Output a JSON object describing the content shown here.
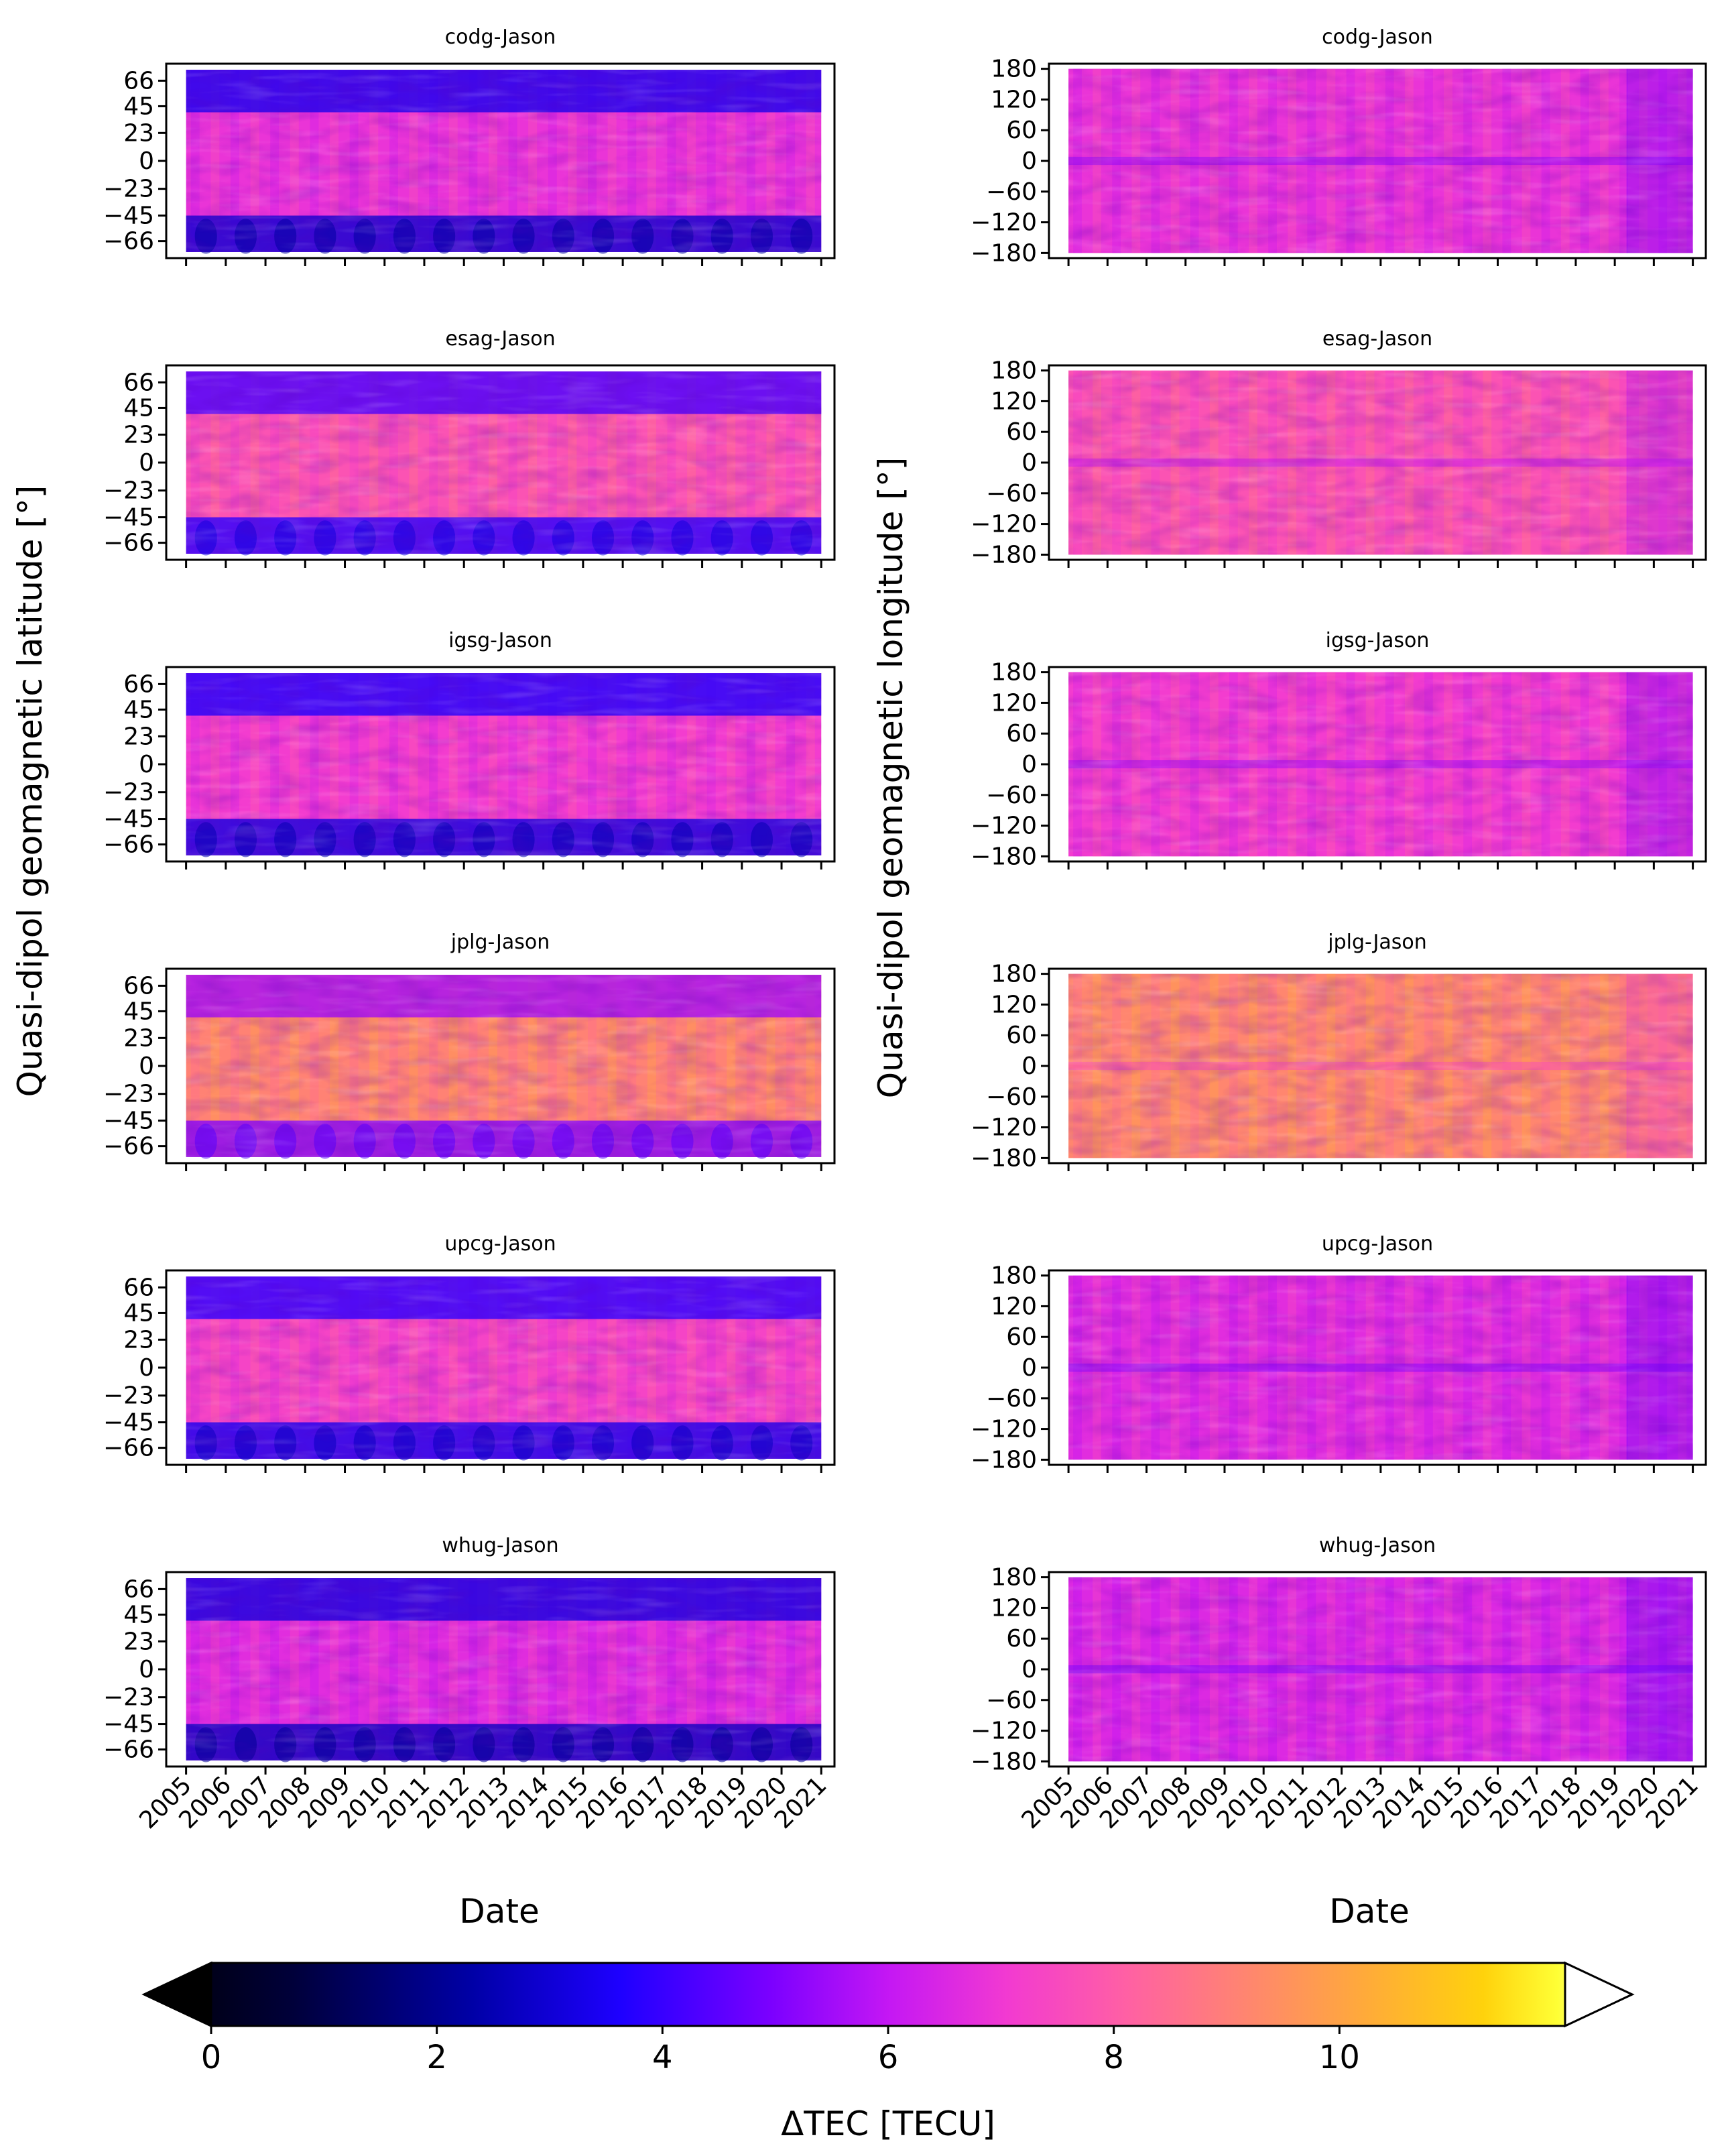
{
  "figure": {
    "ylabel_left": "Quasi-dipol geomagnetic latitude [°]",
    "ylabel_right": "Quasi-dipol geomagnetic longitude [°]",
    "xlabel": "Date",
    "colorbar": {
      "label": "ΔTEC [TECU]",
      "ticks": [
        "0",
        "2",
        "4",
        "6",
        "8",
        "10"
      ],
      "range": [
        0,
        12
      ],
      "extend": "both",
      "colormap": "gnuplot2"
    }
  },
  "chart_data": [
    {
      "type": "heatmap",
      "title": "codg-Jason",
      "xlabel": "",
      "ylabel": "",
      "y_variable": "latitude",
      "yticks": [
        "66",
        "45",
        "23",
        "0",
        "−23",
        "−45",
        "−66"
      ],
      "ytick_values": [
        66,
        45,
        23,
        0,
        -23,
        -45,
        -66
      ],
      "ylim": [
        -80,
        80
      ],
      "xticks": [],
      "xlim": [
        "2004-07",
        "2021-05"
      ],
      "data_range": [
        "2005-01",
        "2021-01"
      ],
      "mean_delta_tec": 6.8
    },
    {
      "type": "heatmap",
      "title": "codg-Jason",
      "xlabel": "",
      "ylabel": "",
      "y_variable": "longitude",
      "yticks": [
        "180",
        "120",
        "60",
        "0",
        "−60",
        "−120",
        "−180"
      ],
      "ytick_values": [
        180,
        120,
        60,
        0,
        -60,
        -120,
        -180
      ],
      "ylim": [
        -190,
        190
      ],
      "xticks": [],
      "xlim": [
        "2004-07",
        "2021-05"
      ],
      "data_range": [
        "2005-01",
        "2021-01"
      ],
      "mean_delta_tec": 6.8
    },
    {
      "type": "heatmap",
      "title": "esag-Jason",
      "xlabel": "",
      "ylabel": "",
      "y_variable": "latitude",
      "yticks": [
        "66",
        "45",
        "23",
        "0",
        "−23",
        "−45",
        "−66"
      ],
      "ytick_values": [
        66,
        45,
        23,
        0,
        -23,
        -45,
        -66
      ],
      "ylim": [
        -80,
        80
      ],
      "xticks": [],
      "xlim": [
        "2004-07",
        "2021-05"
      ],
      "data_range": [
        "2005-01",
        "2021-01"
      ],
      "mean_delta_tec": 7.6
    },
    {
      "type": "heatmap",
      "title": "esag-Jason",
      "xlabel": "",
      "ylabel": "",
      "y_variable": "longitude",
      "yticks": [
        "180",
        "120",
        "60",
        "0",
        "−60",
        "−120",
        "−180"
      ],
      "ytick_values": [
        180,
        120,
        60,
        0,
        -60,
        -120,
        -180
      ],
      "ylim": [
        -190,
        190
      ],
      "xticks": [],
      "xlim": [
        "2004-07",
        "2021-05"
      ],
      "data_range": [
        "2005-01",
        "2021-01"
      ],
      "mean_delta_tec": 7.6
    },
    {
      "type": "heatmap",
      "title": "igsg-Jason",
      "xlabel": "",
      "ylabel": "",
      "y_variable": "latitude",
      "yticks": [
        "66",
        "45",
        "23",
        "0",
        "−23",
        "−45",
        "−66"
      ],
      "ytick_values": [
        66,
        45,
        23,
        0,
        -23,
        -45,
        -66
      ],
      "ylim": [
        -80,
        80
      ],
      "xticks": [],
      "xlim": [
        "2004-07",
        "2021-05"
      ],
      "data_range": [
        "2005-01",
        "2021-01"
      ],
      "mean_delta_tec": 7.0
    },
    {
      "type": "heatmap",
      "title": "igsg-Jason",
      "xlabel": "",
      "ylabel": "",
      "y_variable": "longitude",
      "yticks": [
        "180",
        "120",
        "60",
        "0",
        "−60",
        "−120",
        "−180"
      ],
      "ytick_values": [
        180,
        120,
        60,
        0,
        -60,
        -120,
        -180
      ],
      "ylim": [
        -190,
        190
      ],
      "xticks": [],
      "xlim": [
        "2004-07",
        "2021-05"
      ],
      "data_range": [
        "2005-01",
        "2021-01"
      ],
      "mean_delta_tec": 7.0
    },
    {
      "type": "heatmap",
      "title": "jplg-Jason",
      "xlabel": "",
      "ylabel": "",
      "y_variable": "latitude",
      "yticks": [
        "66",
        "45",
        "23",
        "0",
        "−23",
        "−45",
        "−66"
      ],
      "ytick_values": [
        66,
        45,
        23,
        0,
        -23,
        -45,
        -66
      ],
      "ylim": [
        -80,
        80
      ],
      "xticks": [],
      "xlim": [
        "2004-07",
        "2021-05"
      ],
      "data_range": [
        "2005-01",
        "2021-01"
      ],
      "mean_delta_tec": 8.8
    },
    {
      "type": "heatmap",
      "title": "jplg-Jason",
      "xlabel": "",
      "ylabel": "",
      "y_variable": "longitude",
      "yticks": [
        "180",
        "120",
        "60",
        "0",
        "−60",
        "−120",
        "−180"
      ],
      "ytick_values": [
        180,
        120,
        60,
        0,
        -60,
        -120,
        -180
      ],
      "ylim": [
        -190,
        190
      ],
      "xticks": [],
      "xlim": [
        "2004-07",
        "2021-05"
      ],
      "data_range": [
        "2005-01",
        "2021-01"
      ],
      "mean_delta_tec": 8.9
    },
    {
      "type": "heatmap",
      "title": "upcg-Jason",
      "xlabel": "",
      "ylabel": "",
      "y_variable": "latitude",
      "yticks": [
        "66",
        "45",
        "23",
        "0",
        "−23",
        "−45",
        "−66"
      ],
      "ytick_values": [
        66,
        45,
        23,
        0,
        -23,
        -45,
        -66
      ],
      "ylim": [
        -80,
        80
      ],
      "xticks": [],
      "xlim": [
        "2004-07",
        "2021-05"
      ],
      "data_range": [
        "2005-01",
        "2021-01"
      ],
      "mean_delta_tec": 7.2
    },
    {
      "type": "heatmap",
      "title": "upcg-Jason",
      "xlabel": "",
      "ylabel": "",
      "y_variable": "longitude",
      "yticks": [
        "180",
        "120",
        "60",
        "0",
        "−60",
        "−120",
        "−180"
      ],
      "ytick_values": [
        180,
        120,
        60,
        0,
        -60,
        -120,
        -180
      ],
      "ylim": [
        -190,
        190
      ],
      "xticks": [],
      "xlim": [
        "2004-07",
        "2021-05"
      ],
      "data_range": [
        "2005-01",
        "2021-01"
      ],
      "mean_delta_tec": 6.6
    },
    {
      "type": "heatmap",
      "title": "whug-Jason",
      "xlabel": "Date",
      "ylabel": "",
      "y_variable": "latitude",
      "yticks": [
        "66",
        "45",
        "23",
        "0",
        "−23",
        "−45",
        "−66"
      ],
      "ytick_values": [
        66,
        45,
        23,
        0,
        -23,
        -45,
        -66
      ],
      "ylim": [
        -80,
        80
      ],
      "xticks": [
        "2005",
        "2006",
        "2007",
        "2008",
        "2009",
        "2010",
        "2011",
        "2012",
        "2013",
        "2014",
        "2015",
        "2016",
        "2017",
        "2018",
        "2019",
        "2020",
        "2021"
      ],
      "xlim": [
        "2004-07",
        "2021-05"
      ],
      "data_range": [
        "2005-01",
        "2021-01"
      ],
      "mean_delta_tec": 6.6
    },
    {
      "type": "heatmap",
      "title": "whug-Jason",
      "xlabel": "Date",
      "ylabel": "",
      "y_variable": "longitude",
      "yticks": [
        "180",
        "120",
        "60",
        "0",
        "−60",
        "−120",
        "−180"
      ],
      "ytick_values": [
        180,
        120,
        60,
        0,
        -60,
        -120,
        -180
      ],
      "ylim": [
        -190,
        190
      ],
      "xticks": [
        "2005",
        "2006",
        "2007",
        "2008",
        "2009",
        "2010",
        "2011",
        "2012",
        "2013",
        "2014",
        "2015",
        "2016",
        "2017",
        "2018",
        "2019",
        "2020",
        "2021"
      ],
      "xlim": [
        "2004-07",
        "2021-05"
      ],
      "data_range": [
        "2005-01",
        "2021-01"
      ],
      "mean_delta_tec": 6.5
    }
  ]
}
